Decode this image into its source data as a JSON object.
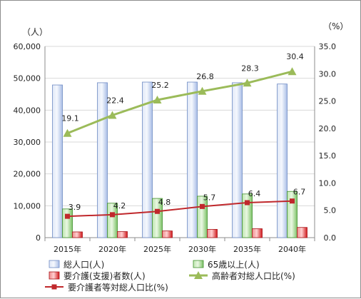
{
  "chart_data": {
    "type": "bar",
    "categories": [
      "2015年",
      "2020年",
      "2025年",
      "2030年",
      "2035年",
      "2040年"
    ],
    "y_left": {
      "unit": "（人）",
      "min": 0,
      "max": 60000,
      "step": 10000,
      "ticks": [
        "0",
        "10,000",
        "20,000",
        "30,000",
        "40,000",
        "50,000",
        "60,000"
      ]
    },
    "y_right": {
      "unit": "（%）",
      "min": 0,
      "max": 35,
      "step": 5,
      "ticks": [
        "0.0",
        "5.0",
        "10.0",
        "15.0",
        "20.0",
        "25.0",
        "30.0",
        "35.0"
      ]
    },
    "series": [
      {
        "name": "総人口(人)",
        "kind": "bar",
        "axis": "left",
        "color": "#b8c9ea",
        "values": [
          47900,
          48600,
          48800,
          48800,
          48600,
          48200
        ]
      },
      {
        "name": "65歳以上(人)",
        "kind": "bar",
        "axis": "left",
        "color": "#9cd68a",
        "values": [
          9000,
          10800,
          12300,
          13000,
          13700,
          14500
        ]
      },
      {
        "name": "要介護(支援)者数(人)",
        "kind": "bar",
        "axis": "left",
        "color": "#e0282c",
        "values": [
          1800,
          1900,
          2100,
          2600,
          2800,
          3200
        ]
      },
      {
        "name": "高齢者対総人口比(%)",
        "kind": "line",
        "axis": "right",
        "color": "#9bbb59",
        "marker": "triangle",
        "values": [
          19.1,
          22.4,
          25.2,
          26.8,
          28.3,
          30.4
        ],
        "labels": [
          "19.1",
          "22.4",
          "25.2",
          "26.8",
          "28.3",
          "30.4"
        ]
      },
      {
        "name": "要介護者等対総人口比(%)",
        "kind": "line",
        "axis": "right",
        "color": "#c0282c",
        "marker": "square",
        "values": [
          3.9,
          4.2,
          4.8,
          5.7,
          6.4,
          6.7
        ],
        "labels": [
          "3.9",
          "4.2",
          "4.8",
          "5.7",
          "6.4",
          "6.7"
        ]
      }
    ],
    "grid": "horizontal",
    "legend": "bottom"
  }
}
